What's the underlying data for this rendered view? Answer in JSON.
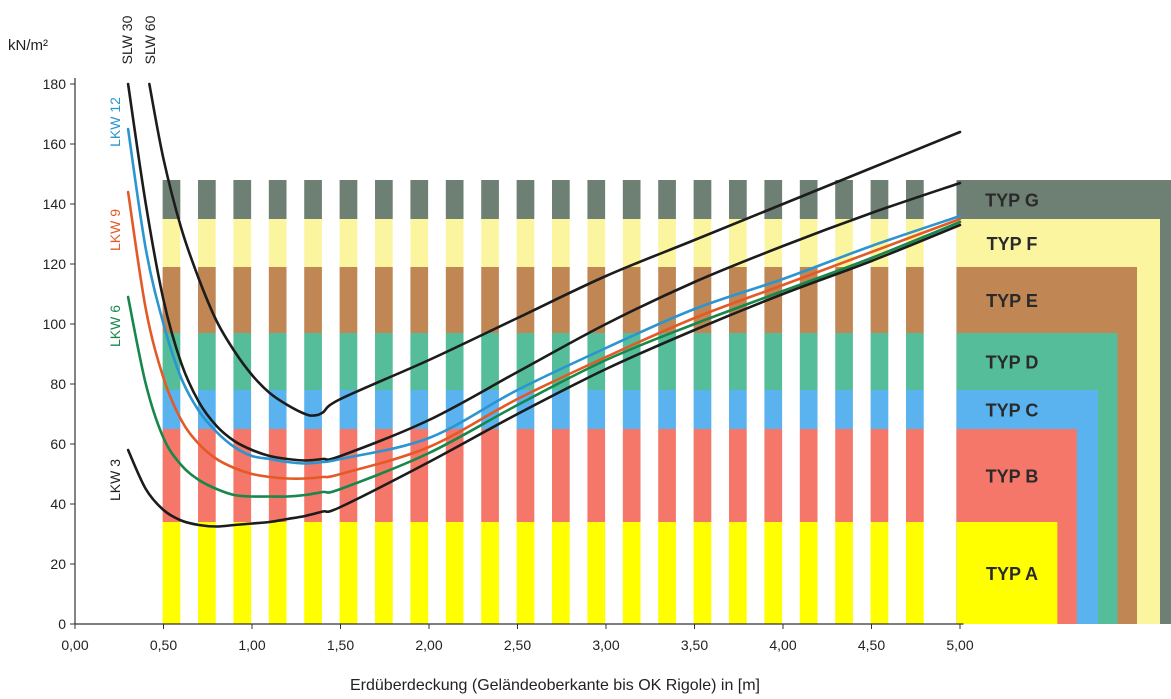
{
  "chart_data": {
    "type": "line",
    "ylabel": "kN/m²",
    "xlabel": "Erdüberdeckung (Geländeoberkante bis OK Rigole) in [m]",
    "xlim": [
      0,
      5.8
    ],
    "ylim": [
      0,
      180
    ],
    "x_ticks": [
      "0,00",
      "0,50",
      "1,00",
      "1,50",
      "2,00",
      "2,50",
      "3,00",
      "3,50",
      "4,00",
      "4,50",
      "5,00"
    ],
    "x_tick_values": [
      0,
      0.5,
      1.0,
      1.5,
      2.0,
      2.5,
      3.0,
      3.5,
      4.0,
      4.5,
      5.0
    ],
    "y_ticks": [
      "0",
      "20",
      "40",
      "60",
      "80",
      "100",
      "120",
      "140",
      "160",
      "180"
    ],
    "y_tick_values": [
      0,
      20,
      40,
      60,
      80,
      100,
      120,
      140,
      160,
      180
    ],
    "bands": [
      {
        "name": "TYP A",
        "lower": 0,
        "upper": 34,
        "color": "#ffff00",
        "bar_x_end": 5.55
      },
      {
        "name": "TYP B",
        "lower": 34,
        "upper": 65,
        "color": "#f4776a",
        "bar_x_end": 5.66
      },
      {
        "name": "TYP C",
        "lower": 65,
        "upper": 78,
        "color": "#5ab3ef",
        "bar_x_end": 5.78
      },
      {
        "name": "TYP D",
        "lower": 78,
        "upper": 97,
        "color": "#55bd99",
        "bar_x_end": 5.89
      },
      {
        "name": "TYP E",
        "lower": 97,
        "upper": 119,
        "color": "#c08755",
        "bar_x_end": 6.0
      },
      {
        "name": "TYP F",
        "lower": 119,
        "upper": 135,
        "color": "#fcf5a0",
        "bar_x_end": 6.13
      },
      {
        "name": "TYP G",
        "lower": 135,
        "upper": 148,
        "color": "#6e7f74",
        "bar_x_end": 6.3
      }
    ],
    "series": [
      {
        "name": "SLW 60",
        "color": "#1c1c1c",
        "x": [
          0.42,
          0.5,
          0.6,
          0.7,
          0.8,
          0.9,
          1.0,
          1.1,
          1.2,
          1.3,
          1.35,
          1.4,
          1.5,
          2.0,
          2.5,
          3.0,
          3.5,
          4.0,
          4.5,
          5.0
        ],
        "y": [
          180,
          155,
          132,
          115,
          101,
          91,
          83,
          77,
          73,
          70,
          69.5,
          70.5,
          75,
          88,
          102,
          116,
          128,
          140,
          152,
          164
        ]
      },
      {
        "name": "SLW 30",
        "color": "#1c1c1c",
        "x": [
          0.3,
          0.4,
          0.5,
          0.6,
          0.7,
          0.8,
          0.9,
          1.0,
          1.1,
          1.2,
          1.3,
          1.4,
          1.5,
          2.0,
          2.5,
          3.0,
          3.5,
          4.0,
          4.5,
          5.0
        ],
        "y": [
          180,
          140,
          108,
          87,
          74,
          66,
          61,
          58,
          56,
          55,
          54.5,
          55,
          56,
          68,
          84,
          100,
          114,
          126,
          137,
          147
        ]
      },
      {
        "name": "LKW 12",
        "color": "#2a95d0",
        "x": [
          0.3,
          0.4,
          0.5,
          0.6,
          0.7,
          0.8,
          0.9,
          1.0,
          1.1,
          1.2,
          1.3,
          1.4,
          1.5,
          2.0,
          2.5,
          3.0,
          3.5,
          4.0,
          4.5,
          5.0
        ],
        "y": [
          165,
          125,
          100,
          82,
          71,
          64,
          59,
          56,
          55,
          54,
          53.5,
          54,
          55,
          62,
          78,
          92,
          105,
          115,
          126,
          136
        ]
      },
      {
        "name": "LKW 9",
        "color": "#e45a27",
        "x": [
          0.3,
          0.4,
          0.5,
          0.6,
          0.7,
          0.8,
          0.9,
          1.0,
          1.1,
          1.2,
          1.3,
          1.4,
          1.5,
          2.0,
          2.5,
          3.0,
          3.5,
          4.0,
          4.5,
          5.0
        ],
        "y": [
          144,
          105,
          82,
          68,
          60,
          55,
          52,
          50,
          49,
          48.5,
          48.5,
          49,
          50,
          59,
          75,
          89,
          102,
          113,
          124,
          135
        ]
      },
      {
        "name": "LKW 6",
        "color": "#17874b",
        "x": [
          0.3,
          0.4,
          0.5,
          0.6,
          0.7,
          0.8,
          0.9,
          1.0,
          1.1,
          1.2,
          1.3,
          1.4,
          1.5,
          2.0,
          2.5,
          3.0,
          3.5,
          4.0,
          4.5,
          5.0
        ],
        "y": [
          109,
          80,
          62,
          53,
          48,
          45,
          43,
          42.5,
          42.5,
          42.5,
          43,
          44,
          45,
          57,
          73,
          88,
          100,
          111,
          122,
          134
        ]
      },
      {
        "name": "LKW 3",
        "color": "#1c1c1c",
        "x": [
          0.3,
          0.4,
          0.5,
          0.6,
          0.7,
          0.8,
          0.9,
          1.0,
          1.1,
          1.2,
          1.3,
          1.4,
          1.5,
          2.0,
          2.5,
          3.0,
          3.5,
          4.0,
          4.5,
          5.0
        ],
        "y": [
          58,
          45,
          38,
          34.5,
          33,
          32.5,
          33,
          33.5,
          34,
          35,
          36,
          37.5,
          39,
          54,
          70,
          85,
          98,
          110,
          121,
          133
        ]
      }
    ],
    "grid": false
  }
}
